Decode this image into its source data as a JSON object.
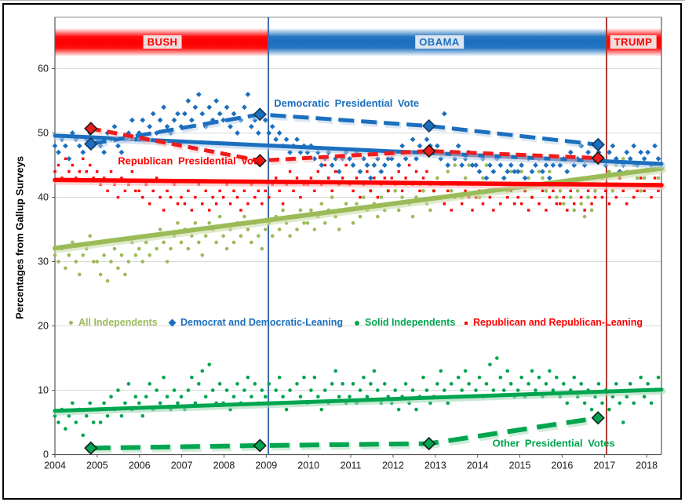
{
  "chart_data": {
    "type": "scatter",
    "title": "",
    "xlabel": "",
    "ylabel": "Percentages from Gallup Surveys",
    "xlim": [
      2004,
      2018.35
    ],
    "ylim": [
      0,
      68
    ],
    "grid": "horizontal",
    "x_ticks": [
      2004,
      2005,
      2006,
      2007,
      2008,
      2009,
      2010,
      2011,
      2012,
      2013,
      2014,
      2015,
      2016,
      2017,
      2018
    ],
    "y_ticks": [
      0,
      10,
      20,
      30,
      40,
      50,
      60
    ],
    "banners": [
      {
        "label": "BUSH",
        "from": 2004,
        "to": 2009.05,
        "color": "#FF0000",
        "label_color": "#FF0000",
        "label_bg": "#F2DCDB"
      },
      {
        "label": "OBAMA",
        "from": 2009.05,
        "to": 2017.05,
        "color": "#1B6FBE",
        "label_color": "#1B6FBE",
        "label_bg": "#DBE5F1"
      },
      {
        "label": "TRUMP",
        "from": 2017.05,
        "to": 2018.35,
        "color": "#FF0000",
        "label_color": "#FF0000",
        "label_bg": "#F2DCDB"
      }
    ],
    "banner_band_y": [
      61.9,
      66.3
    ],
    "president_lines": [
      {
        "year": 2009.05,
        "color": "#3A6BB0",
        "president": "OBAMA"
      },
      {
        "year": 2017.05,
        "color": "#AE3B33",
        "president": "TRUMP"
      }
    ],
    "series": [
      {
        "name": "All Independents",
        "marker": "circle",
        "color": "#9BBB59",
        "start": 2004.0,
        "step": 0.083,
        "values": [
          31,
          30,
          32,
          29,
          31,
          33,
          30,
          28,
          31,
          32,
          34,
          30,
          30,
          28,
          31,
          27,
          30,
          32,
          29,
          31,
          28,
          30,
          33,
          31,
          32,
          30,
          33,
          31,
          34,
          32,
          35,
          33,
          30,
          32,
          34,
          36,
          33,
          35,
          32,
          34,
          36,
          33,
          31,
          34,
          36,
          35,
          33,
          37,
          34,
          32,
          35,
          33,
          36,
          34,
          37,
          35,
          33,
          36,
          34,
          32,
          35,
          36,
          34,
          37,
          35,
          38,
          36,
          34,
          37,
          35,
          38,
          36,
          36,
          38,
          35,
          37,
          39,
          36,
          38,
          40,
          37,
          35,
          38,
          39,
          38,
          36,
          39,
          37,
          40,
          38,
          41,
          39,
          37,
          40,
          38,
          41,
          39,
          41,
          38,
          40,
          42,
          39,
          37,
          40,
          42,
          41,
          39,
          38,
          41,
          43,
          40,
          42,
          44,
          41,
          45,
          42,
          40,
          43,
          45,
          42,
          42,
          40,
          43,
          45,
          41,
          44,
          42,
          45,
          43,
          41,
          44,
          42,
          42,
          44,
          41,
          43,
          40,
          42,
          44,
          43,
          41,
          44,
          42,
          40,
          41,
          39,
          42,
          40,
          38,
          41,
          39,
          37,
          40,
          38,
          41,
          42,
          43,
          42,
          44,
          41,
          45,
          43,
          46,
          44,
          42,
          45,
          43,
          41,
          43,
          44,
          42,
          45,
          43
        ]
      },
      {
        "name": "Democrat and Democratic-Leaning",
        "marker": "diamond",
        "color": "#1B6FBE",
        "start": 2004.0,
        "step": 0.083,
        "values": [
          48,
          47,
          49,
          48,
          46,
          50,
          49,
          48,
          47,
          49,
          50,
          48,
          49,
          48,
          47,
          50,
          49,
          51,
          48,
          47,
          49,
          50,
          52,
          49,
          50,
          52,
          49,
          51,
          53,
          50,
          52,
          54,
          51,
          50,
          52,
          53,
          51,
          53,
          55,
          52,
          54,
          56,
          53,
          51,
          54,
          52,
          55,
          53,
          52,
          54,
          51,
          53,
          50,
          52,
          54,
          56,
          51,
          52,
          50,
          53,
          52,
          50,
          51,
          49,
          50,
          48,
          49,
          47,
          48,
          49,
          47,
          48,
          47,
          48,
          46,
          47,
          45,
          46,
          47,
          45,
          46,
          44,
          46,
          47,
          46,
          45,
          47,
          44,
          46,
          45,
          43,
          45,
          46,
          44,
          45,
          46,
          46,
          47,
          45,
          48,
          46,
          47,
          49,
          46,
          48,
          47,
          49,
          48,
          47,
          48,
          46,
          53,
          45,
          47,
          46,
          48,
          45,
          46,
          47,
          45,
          45,
          44,
          46,
          43,
          45,
          44,
          46,
          45,
          43,
          44,
          45,
          44,
          44,
          45,
          43,
          46,
          44,
          45,
          46,
          44,
          45,
          43,
          45,
          46,
          45,
          46,
          44,
          47,
          45,
          46,
          48,
          45,
          47,
          46,
          48,
          47,
          46,
          45,
          47,
          48,
          46,
          44,
          45,
          47,
          46,
          48,
          45,
          47,
          46,
          47,
          45,
          48,
          46
        ]
      },
      {
        "name": "Solid Independents",
        "marker": "circle",
        "color": "#00A54F",
        "start": 2004.0,
        "step": 0.083,
        "values": [
          6,
          5,
          7,
          4,
          6,
          8,
          5,
          7,
          3,
          6,
          8,
          5,
          7,
          5,
          8,
          6,
          9,
          7,
          10,
          6,
          8,
          11,
          7,
          9,
          8,
          6,
          9,
          11,
          7,
          10,
          8,
          12,
          9,
          7,
          10,
          8,
          9,
          7,
          10,
          12,
          8,
          11,
          13,
          9,
          14,
          10,
          8,
          11,
          8,
          10,
          7,
          9,
          11,
          8,
          10,
          12,
          9,
          11,
          8,
          10,
          9,
          11,
          8,
          10,
          12,
          9,
          7,
          10,
          8,
          11,
          9,
          12,
          8,
          10,
          12,
          9,
          7,
          10,
          8,
          11,
          13,
          9,
          11,
          8,
          9,
          11,
          8,
          10,
          12,
          9,
          11,
          13,
          10,
          8,
          11,
          9,
          8,
          10,
          7,
          9,
          11,
          8,
          10,
          7,
          9,
          12,
          10,
          8,
          9,
          11,
          13,
          10,
          8,
          11,
          9,
          12,
          10,
          13,
          11,
          9,
          10,
          12,
          9,
          11,
          14,
          10,
          15,
          12,
          10,
          13,
          11,
          9,
          10,
          12,
          9,
          11,
          13,
          10,
          12,
          9,
          11,
          13,
          10,
          12,
          9,
          11,
          8,
          10,
          12,
          9,
          11,
          8,
          10,
          7,
          9,
          11,
          8,
          10,
          7,
          9,
          11,
          8,
          5,
          9,
          11,
          8,
          10,
          12,
          9,
          11,
          8,
          10,
          12
        ]
      },
      {
        "name": "Republican and Republican-Leaning",
        "marker": "square",
        "color": "#FE0000",
        "start": 2004.0,
        "step": 0.083,
        "values": [
          44,
          45,
          43,
          46,
          44,
          45,
          43,
          44,
          46,
          44,
          45,
          43,
          44,
          42,
          43,
          41,
          44,
          42,
          40,
          43,
          41,
          42,
          44,
          41,
          41,
          40,
          42,
          39,
          41,
          43,
          40,
          38,
          41,
          40,
          42,
          39,
          40,
          39,
          41,
          38,
          40,
          42,
          39,
          41,
          38,
          40,
          39,
          41,
          40,
          42,
          39,
          41,
          40,
          38,
          41,
          39,
          42,
          40,
          41,
          39,
          41,
          40,
          42,
          43,
          41,
          39,
          42,
          44,
          41,
          43,
          40,
          42,
          42,
          43,
          41,
          44,
          42,
          45,
          43,
          41,
          44,
          42,
          43,
          45,
          42,
          41,
          43,
          40,
          42,
          44,
          41,
          43,
          40,
          42,
          43,
          41,
          43,
          42,
          44,
          41,
          43,
          45,
          42,
          44,
          41,
          43,
          44,
          42,
          41,
          40,
          42,
          39,
          41,
          38,
          40,
          42,
          39,
          41,
          40,
          38,
          40,
          41,
          39,
          42,
          40,
          38,
          41,
          39,
          42,
          40,
          41,
          39,
          40,
          39,
          41,
          38,
          40,
          42,
          39,
          41,
          38,
          40,
          41,
          39,
          39,
          40,
          38,
          41,
          39,
          42,
          40,
          38,
          41,
          39,
          40,
          42,
          40,
          41,
          39,
          42,
          40,
          43,
          41,
          39,
          42,
          40,
          41,
          43,
          41,
          42,
          40,
          43,
          41
        ]
      }
    ],
    "trendlines": [
      {
        "series": "All Independents",
        "color": "#9BBB59",
        "halo": "#CCDCA8",
        "width": 6,
        "points": [
          [
            2004,
            32.1
          ],
          [
            2018.35,
            44.5
          ]
        ]
      },
      {
        "series": "Democrat and Democratic-Leaning",
        "color": "#1B6FBE",
        "halo": "#B7CFEA",
        "width": 5,
        "points": [
          [
            2004,
            49.6
          ],
          [
            2018.35,
            45.2
          ]
        ]
      },
      {
        "series": "Solid Independents",
        "color": "#00A54F",
        "halo": "#9FD9B4",
        "width": 5,
        "points": [
          [
            2004,
            6.8
          ],
          [
            2018.35,
            10.1
          ]
        ]
      },
      {
        "series": "Republican and Republican-Leaning",
        "color": "#FE0000",
        "halo": "#FAB9B9",
        "width": 5.5,
        "points": [
          [
            2004,
            42.7
          ],
          [
            2018.35,
            41.9
          ]
        ]
      }
    ],
    "president_votes": [
      {
        "name": "Democratic Presidential Vote",
        "color": "#1B6FBE",
        "halo": "#B7CFEA",
        "border": "#17375E",
        "width": 5,
        "dash": [
          20,
          9
        ],
        "points": [
          [
            2004.85,
            48.3
          ],
          [
            2008.85,
            52.9
          ],
          [
            2012.85,
            51.1
          ],
          [
            2016.85,
            48.2
          ]
        ]
      },
      {
        "name": "Republican Presidential Vote",
        "color": "#EE1C1C",
        "halo": "#FAB9B9",
        "border": "#1a1a1a",
        "width": 5,
        "dash": [
          13,
          8
        ],
        "points": [
          [
            2004.85,
            50.7
          ],
          [
            2008.85,
            45.7
          ],
          [
            2012.85,
            47.2
          ],
          [
            2016.85,
            46.1
          ]
        ]
      },
      {
        "name": "Other Presidential Votes",
        "color": "#00A54F",
        "halo": "#9FD9B4",
        "border": "#1a1a1a",
        "width": 6,
        "dash": [
          25,
          13
        ],
        "points": [
          [
            2004.85,
            1.0
          ],
          [
            2008.85,
            1.4
          ],
          [
            2012.85,
            1.7
          ],
          [
            2016.85,
            5.7
          ]
        ]
      }
    ],
    "annotations": [
      {
        "text": "Democratic Presidential Vote",
        "color": "#1B6FBE",
        "x": 2010.9,
        "y": 54.6
      },
      {
        "text": "Republican Presidential Vote",
        "color": "#FE0000",
        "x": 2007.2,
        "y": 45.6
      },
      {
        "text": "Other Presidential Votes",
        "color": "#00A54F",
        "x": 2015.8,
        "y": 1.7
      }
    ],
    "legend": [
      {
        "label": "All Independents",
        "marker": "dot-sm",
        "color": "#9BBB59"
      },
      {
        "label": "Democrat and Democratic-Leaning",
        "marker": "diamond",
        "color": "#1B6FBE"
      },
      {
        "label": "Solid Independents",
        "marker": "dot",
        "color": "#00A54F"
      },
      {
        "label": "Republican and Republican-Leaning",
        "marker": "square",
        "color": "#FE0000"
      }
    ]
  }
}
